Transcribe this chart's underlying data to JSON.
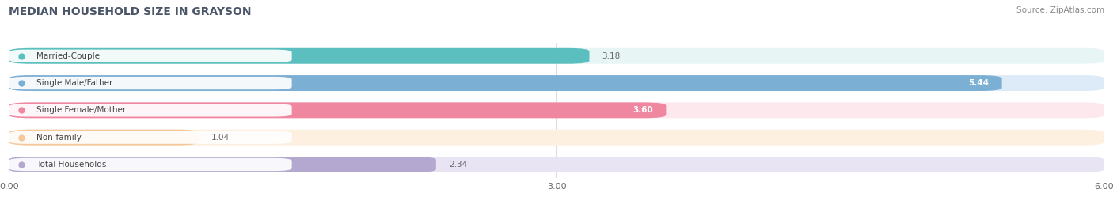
{
  "title": "MEDIAN HOUSEHOLD SIZE IN GRAYSON",
  "source": "Source: ZipAtlas.com",
  "categories": [
    "Married-Couple",
    "Single Male/Father",
    "Single Female/Mother",
    "Non-family",
    "Total Households"
  ],
  "values": [
    3.18,
    5.44,
    3.6,
    1.04,
    2.34
  ],
  "bar_colors": [
    "#5bbfbf",
    "#7bafd4",
    "#f087a0",
    "#f5c89a",
    "#b4a8d0"
  ],
  "bar_bg_colors": [
    "#e8f5f5",
    "#ddeaf7",
    "#fce8ed",
    "#fdf0e0",
    "#e8e4f4"
  ],
  "label_dot_colors": [
    "#5bbfbf",
    "#7bafd4",
    "#f087a0",
    "#f5c89a",
    "#b4a8d0"
  ],
  "xlim": [
    0,
    6.0
  ],
  "xticks": [
    0.0,
    3.0,
    6.0
  ],
  "xtick_labels": [
    "0.00",
    "3.00",
    "6.00"
  ],
  "value_inside": [
    false,
    true,
    true,
    false,
    false
  ],
  "background_color": "#ffffff",
  "grid_color": "#dddddd",
  "label_text_color": "#444444",
  "value_color_inside": "#ffffff",
  "value_color_outside": "#666666"
}
